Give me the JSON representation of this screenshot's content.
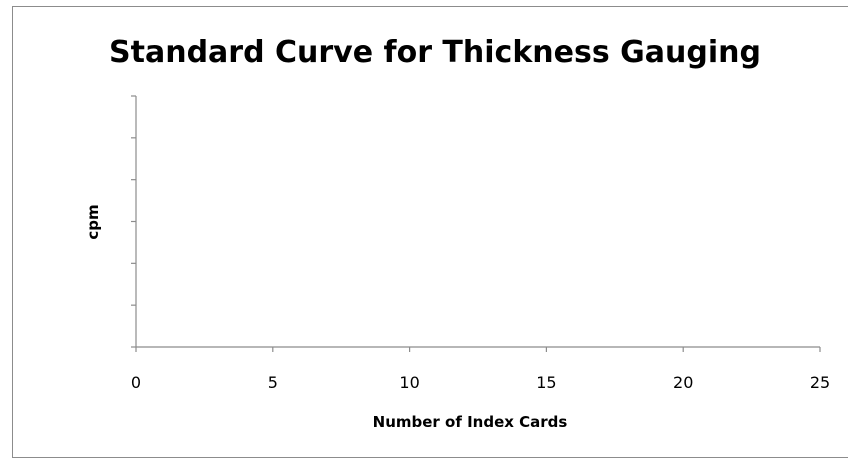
{
  "chart_data": {
    "type": "scatter",
    "title": "Standard Curve for Thickness Gauging",
    "xlabel": "Number of Index Cards",
    "ylabel": "cpm",
    "x_ticks": [
      "0",
      "5",
      "10",
      "15",
      "20",
      "25"
    ],
    "xlim": [
      0,
      25
    ],
    "y_tick_count": 7,
    "y_tick_labels_shown": false,
    "grid": false,
    "legend": "none",
    "series": []
  },
  "colors": {
    "axis": "#8c8c8c",
    "frame_border": "#8c8c8c",
    "text": "#000000",
    "background": "#ffffff"
  }
}
